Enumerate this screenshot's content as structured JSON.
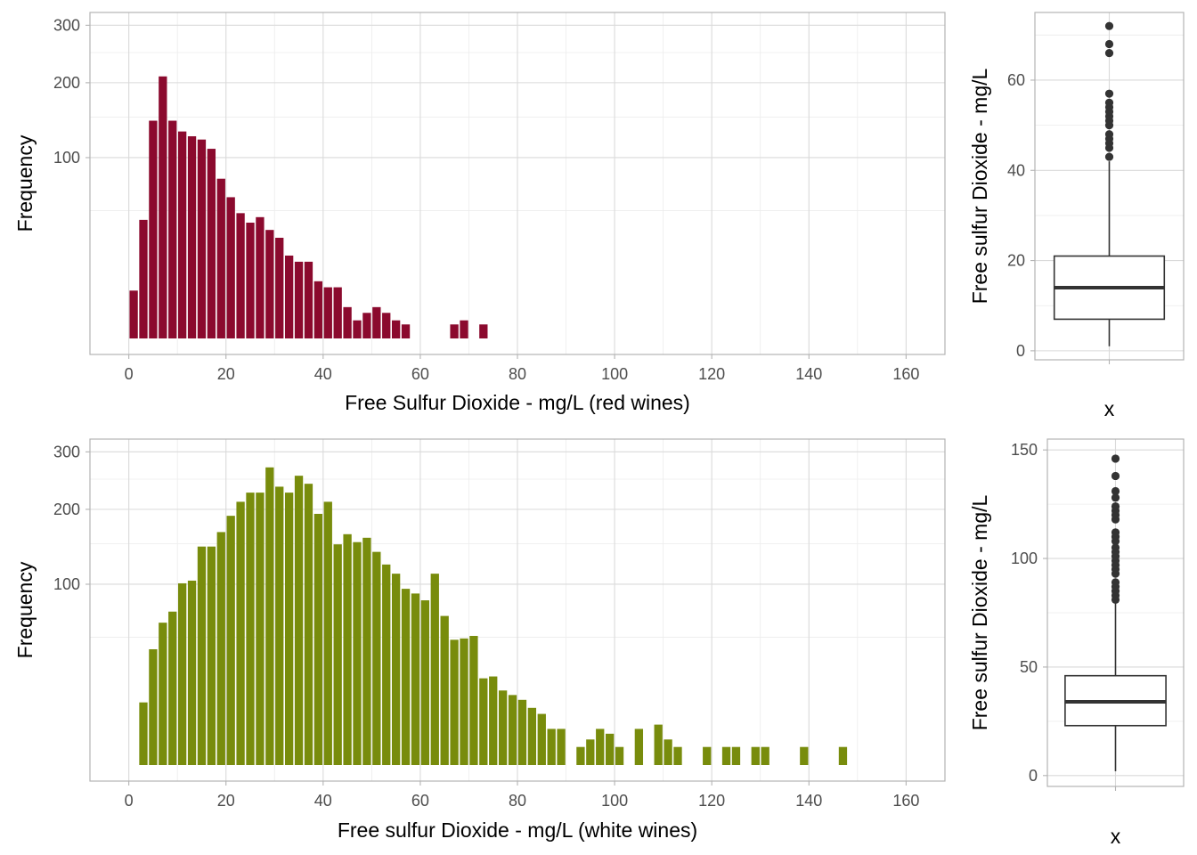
{
  "chart_data": [
    {
      "type": "bar",
      "panel": "red-histogram",
      "xlabel": "Free Sulfur Dioxide - mg/L (red wines)",
      "ylabel": "Frequency",
      "x_ticks": [
        0,
        20,
        40,
        60,
        80,
        100,
        120,
        140,
        160
      ],
      "y_ticks": [
        100,
        200,
        300
      ],
      "y_scale": "sqrt",
      "xlim": [
        -8,
        168
      ],
      "ylim": [
        0,
        325
      ],
      "bin_width": 2,
      "color": "#8b0a2e",
      "grid": true,
      "bars": [
        {
          "x": 1,
          "y": 7
        },
        {
          "x": 3,
          "y": 43
        },
        {
          "x": 5,
          "y": 145
        },
        {
          "x": 7,
          "y": 210
        },
        {
          "x": 9,
          "y": 145
        },
        {
          "x": 11,
          "y": 131
        },
        {
          "x": 13,
          "y": 125
        },
        {
          "x": 15,
          "y": 121
        },
        {
          "x": 17,
          "y": 110
        },
        {
          "x": 19,
          "y": 78
        },
        {
          "x": 21,
          "y": 61
        },
        {
          "x": 23,
          "y": 48
        },
        {
          "x": 25,
          "y": 41
        },
        {
          "x": 27,
          "y": 45
        },
        {
          "x": 29,
          "y": 36
        },
        {
          "x": 31,
          "y": 31
        },
        {
          "x": 33,
          "y": 21
        },
        {
          "x": 35,
          "y": 18
        },
        {
          "x": 37,
          "y": 18
        },
        {
          "x": 39,
          "y": 10
        },
        {
          "x": 41,
          "y": 8
        },
        {
          "x": 43,
          "y": 8
        },
        {
          "x": 45,
          "y": 3
        },
        {
          "x": 47,
          "y": 1
        },
        {
          "x": 49,
          "y": 2
        },
        {
          "x": 51,
          "y": 3
        },
        {
          "x": 53,
          "y": 2
        },
        {
          "x": 55,
          "y": 1
        },
        {
          "x": 57,
          "y": 0.6
        },
        {
          "x": 67,
          "y": 0.6
        },
        {
          "x": 69,
          "y": 1
        },
        {
          "x": 73,
          "y": 0.6
        }
      ]
    },
    {
      "type": "box",
      "panel": "red-boxplot",
      "xlabel": "x",
      "ylabel": "Free sulfur Dioxide - mg/L",
      "y_ticks": [
        0,
        20,
        40,
        60
      ],
      "ylim": [
        -2,
        75
      ],
      "stats": {
        "min": 1,
        "q1": 7,
        "median": 14,
        "q3": 21,
        "max": 42
      },
      "outliers": [
        43,
        45,
        46,
        47,
        48,
        50,
        51,
        52,
        53,
        54,
        55,
        57,
        66,
        68,
        72
      ]
    },
    {
      "type": "bar",
      "panel": "white-histogram",
      "xlabel": "Free sulfur Dioxide - mg/L (white wines)",
      "ylabel": "Frequency",
      "x_ticks": [
        0,
        20,
        40,
        60,
        80,
        100,
        120,
        140,
        160
      ],
      "y_ticks": [
        100,
        200,
        300
      ],
      "y_scale": "sqrt",
      "xlim": [
        -8,
        168
      ],
      "ylim": [
        0,
        325
      ],
      "bin_width": 2,
      "color": "#788c0c",
      "grid": true,
      "bars": [
        {
          "x": 3,
          "y": 12
        },
        {
          "x": 5,
          "y": 41
        },
        {
          "x": 7,
          "y": 62
        },
        {
          "x": 9,
          "y": 72
        },
        {
          "x": 11,
          "y": 101
        },
        {
          "x": 13,
          "y": 104
        },
        {
          "x": 15,
          "y": 146
        },
        {
          "x": 17,
          "y": 146
        },
        {
          "x": 19,
          "y": 166
        },
        {
          "x": 21,
          "y": 190
        },
        {
          "x": 23,
          "y": 212
        },
        {
          "x": 25,
          "y": 227
        },
        {
          "x": 27,
          "y": 227
        },
        {
          "x": 29,
          "y": 271
        },
        {
          "x": 31,
          "y": 237
        },
        {
          "x": 33,
          "y": 227
        },
        {
          "x": 35,
          "y": 256
        },
        {
          "x": 37,
          "y": 242
        },
        {
          "x": 39,
          "y": 193
        },
        {
          "x": 41,
          "y": 212
        },
        {
          "x": 43,
          "y": 149
        },
        {
          "x": 45,
          "y": 163
        },
        {
          "x": 47,
          "y": 152
        },
        {
          "x": 49,
          "y": 158
        },
        {
          "x": 51,
          "y": 139
        },
        {
          "x": 53,
          "y": 123
        },
        {
          "x": 55,
          "y": 112
        },
        {
          "x": 57,
          "y": 95
        },
        {
          "x": 59,
          "y": 90
        },
        {
          "x": 61,
          "y": 83
        },
        {
          "x": 63,
          "y": 112
        },
        {
          "x": 65,
          "y": 68
        },
        {
          "x": 67,
          "y": 48
        },
        {
          "x": 69,
          "y": 49
        },
        {
          "x": 71,
          "y": 51
        },
        {
          "x": 73,
          "y": 23
        },
        {
          "x": 75,
          "y": 24
        },
        {
          "x": 77,
          "y": 17
        },
        {
          "x": 79,
          "y": 15
        },
        {
          "x": 81,
          "y": 13
        },
        {
          "x": 83,
          "y": 10
        },
        {
          "x": 85,
          "y": 8
        },
        {
          "x": 87,
          "y": 4
        },
        {
          "x": 89,
          "y": 4
        },
        {
          "x": 93,
          "y": 1
        },
        {
          "x": 95,
          "y": 2
        },
        {
          "x": 97,
          "y": 4
        },
        {
          "x": 99,
          "y": 3
        },
        {
          "x": 101,
          "y": 1
        },
        {
          "x": 105,
          "y": 4
        },
        {
          "x": 109,
          "y": 5
        },
        {
          "x": 111,
          "y": 2
        },
        {
          "x": 113,
          "y": 1
        },
        {
          "x": 119,
          "y": 1
        },
        {
          "x": 123,
          "y": 1
        },
        {
          "x": 125,
          "y": 1
        },
        {
          "x": 129,
          "y": 1
        },
        {
          "x": 131,
          "y": 1
        },
        {
          "x": 139,
          "y": 1
        },
        {
          "x": 147,
          "y": 1
        }
      ]
    },
    {
      "type": "box",
      "panel": "white-boxplot",
      "xlabel": "x",
      "ylabel": "Free sulfur Dioxide - mg/L",
      "y_ticks": [
        0,
        50,
        100,
        150
      ],
      "ylim": [
        -5,
        155
      ],
      "stats": {
        "min": 2,
        "q1": 23,
        "median": 34,
        "q3": 46,
        "max": 80
      },
      "outliers": [
        81,
        83,
        85,
        87,
        89,
        93,
        95,
        97,
        99,
        101,
        103,
        105,
        108,
        110,
        112,
        118,
        120,
        122,
        124,
        128,
        131,
        138,
        146
      ]
    }
  ]
}
